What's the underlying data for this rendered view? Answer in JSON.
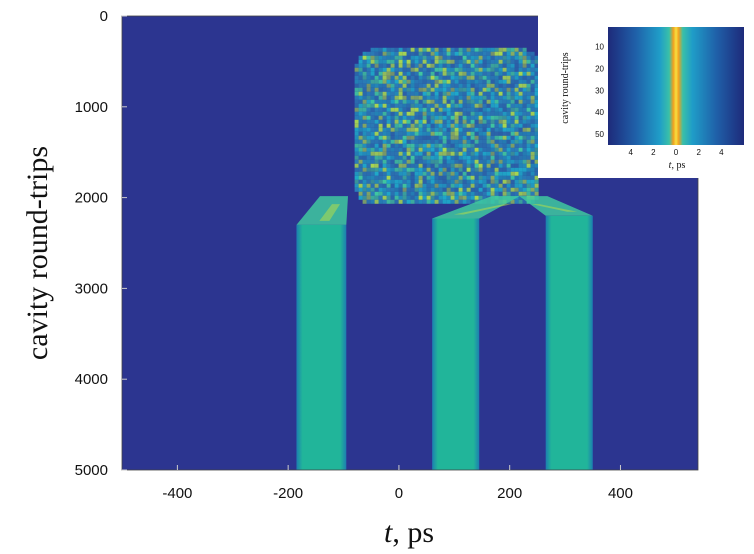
{
  "chart_data": [
    {
      "type": "heatmap",
      "xlabel_italic": "t",
      "xlabel_rest": ", ps",
      "ylabel": "cavity round-trips",
      "xlim": [
        -500,
        540
      ],
      "ylim": [
        0,
        5000
      ],
      "y_inverted": true,
      "x_ticks": [
        "-400",
        "-200",
        "0",
        "200",
        "400"
      ],
      "x_tick_values": [
        -400,
        -200,
        0,
        200,
        400
      ],
      "y_ticks": [
        "0",
        "1000",
        "2000",
        "3000",
        "4000",
        "5000"
      ],
      "y_tick_values": [
        0,
        1000,
        2000,
        3000,
        4000,
        5000
      ],
      "colors": {
        "background": "#2c3590",
        "noise_low": "#2a7fb8",
        "noise_mid": "#1fa8c8",
        "noise_high": "#40c8a0",
        "noise_peak": "#a8d850",
        "soliton": "#21b59a"
      },
      "chaotic_region": {
        "t_start": -80,
        "t_end": 250,
        "rt_start": 350,
        "rt_end": 2050
      },
      "solitons": [
        {
          "t_start": -185,
          "t_end": -95,
          "rt_start": 2300,
          "rt_end": 5000,
          "origin_t": -110
        },
        {
          "t_start": 60,
          "t_end": 145,
          "rt_start": 2230,
          "rt_end": 5000,
          "origin_t": 200
        },
        {
          "t_start": 265,
          "t_end": 350,
          "rt_start": 2200,
          "rt_end": 5000,
          "origin_t": 250
        }
      ]
    },
    {
      "type": "heatmap",
      "inset": true,
      "xlabel_italic": "t",
      "xlabel_rest": ", ps",
      "ylabel": "cavity round-trips",
      "xlim": [
        -6,
        6
      ],
      "ylim": [
        1,
        55
      ],
      "y_inverted": true,
      "x_ticks": [
        "4",
        "2",
        "0",
        "2",
        "4"
      ],
      "x_tick_values": [
        -4,
        -2,
        0,
        2,
        4
      ],
      "y_ticks": [
        "10",
        "20",
        "30",
        "40",
        "50"
      ],
      "y_tick_values": [
        10,
        20,
        30,
        40,
        50
      ],
      "colors": {
        "edge": "#1e2a7a",
        "mid": "#1f9dc8",
        "glow": "#3ac0a8",
        "core": "#f0a020",
        "peak": "#f8e040"
      }
    }
  ]
}
